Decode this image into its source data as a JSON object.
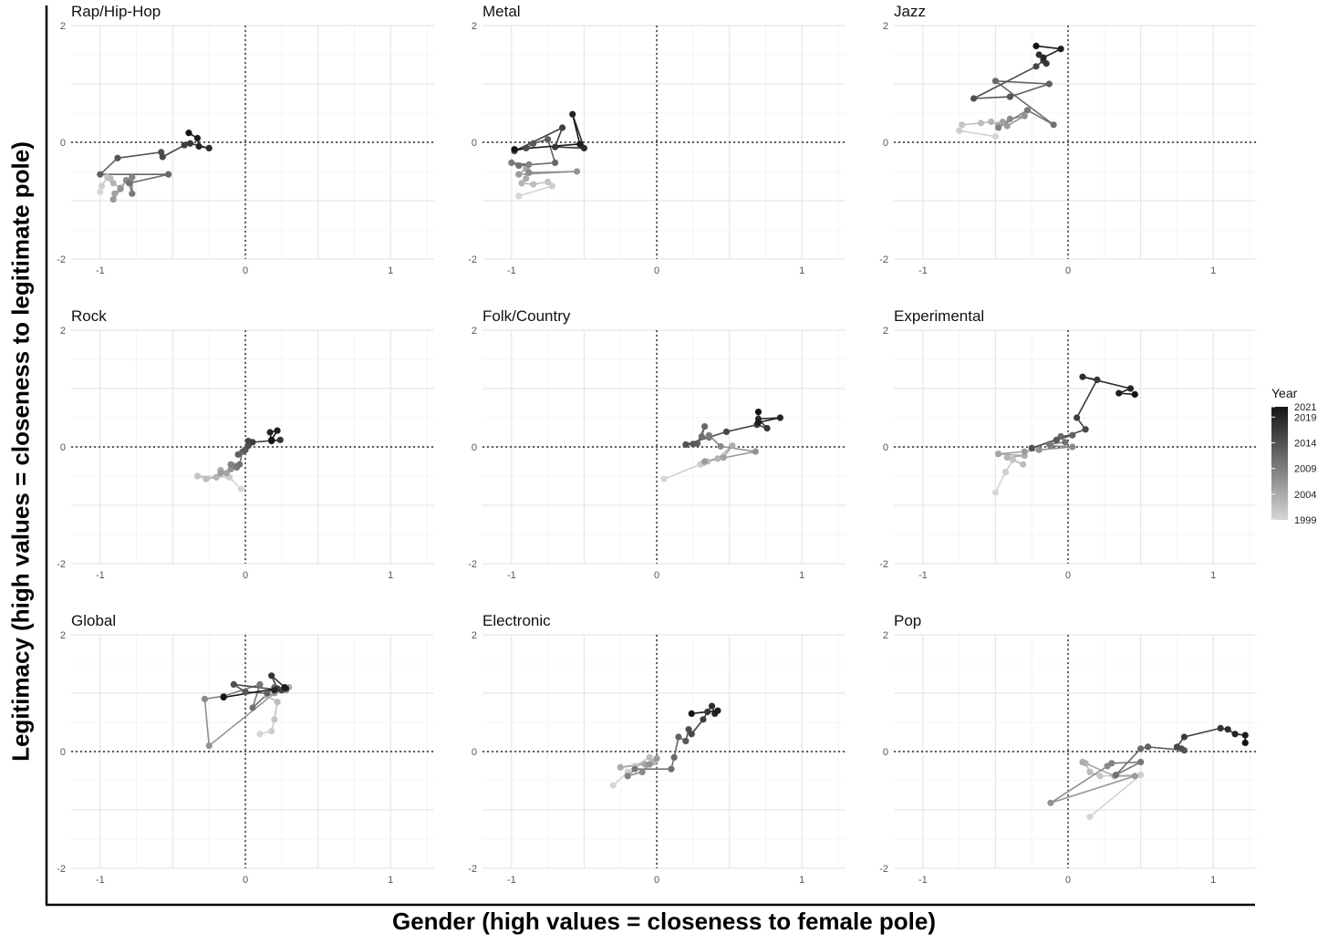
{
  "chart_data": {
    "type": "line",
    "subtype": "faceted connected scatter (path over years)",
    "xlabel": "Gender (high values = closeness to female pole)",
    "ylabel": "Legitimacy (high values = closeness to legitimate pole)",
    "xlim": [
      -1.2,
      1.3
    ],
    "ylim": [
      -2,
      2
    ],
    "x_ticks": [
      -1,
      0,
      1
    ],
    "y_ticks": [
      -2,
      0,
      2
    ],
    "x_tick_labels": [
      "-1",
      "0",
      "1"
    ],
    "y_tick_labels": [
      "-2",
      "0",
      "2"
    ],
    "grid": true,
    "reference_lines": {
      "x": 0,
      "y": 0,
      "style": "dotted"
    },
    "legend": {
      "title": "Year",
      "placement": "right",
      "labels": [
        {
          "year": 2021,
          "text": "2021"
        },
        {
          "year": 2019,
          "text": "2019"
        },
        {
          "year": 2014,
          "text": "2014"
        },
        {
          "year": 2009,
          "text": "2009"
        },
        {
          "year": 2004,
          "text": "2004"
        },
        {
          "year": 1999,
          "text": "1999"
        }
      ],
      "range": [
        1999,
        2021
      ],
      "color_low": "#d6d6d6",
      "color_high": "#141414"
    },
    "facets": [
      {
        "title": "Rap/Hip-Hop",
        "years": [
          1999,
          2021
        ],
        "points": [
          [
            -1.0,
            -0.85
          ],
          [
            -0.99,
            -0.75
          ],
          [
            -0.95,
            -0.6
          ],
          [
            -0.93,
            -0.62
          ],
          [
            -0.91,
            -0.7
          ],
          [
            -0.86,
            -0.78
          ],
          [
            -0.9,
            -0.88
          ],
          [
            -0.91,
            -0.98
          ],
          [
            -0.86,
            -0.8
          ],
          [
            -0.82,
            -0.65
          ],
          [
            -0.78,
            -0.6
          ],
          [
            -0.78,
            -0.88
          ],
          [
            -0.8,
            -0.7
          ],
          [
            -0.53,
            -0.55
          ],
          [
            -1.0,
            -0.55
          ],
          [
            -0.88,
            -0.27
          ],
          [
            -0.58,
            -0.17
          ],
          [
            -0.57,
            -0.25
          ],
          [
            -0.42,
            -0.05
          ],
          [
            -0.38,
            -0.02
          ],
          [
            -0.25,
            -0.1
          ],
          [
            -0.32,
            -0.07
          ],
          [
            -0.33,
            0.07
          ],
          [
            -0.39,
            0.16
          ]
        ]
      },
      {
        "title": "Metal",
        "years": [
          1999,
          2021
        ],
        "points": [
          [
            -0.95,
            -0.92
          ],
          [
            -0.72,
            -0.75
          ],
          [
            -0.75,
            -0.68
          ],
          [
            -0.85,
            -0.72
          ],
          [
            -0.93,
            -0.7
          ],
          [
            -0.9,
            -0.62
          ],
          [
            -0.9,
            -0.45
          ],
          [
            -0.95,
            -0.55
          ],
          [
            -0.55,
            -0.5
          ],
          [
            -0.88,
            -0.52
          ],
          [
            -0.88,
            -0.38
          ],
          [
            -1.0,
            -0.35
          ],
          [
            -0.95,
            -0.4
          ],
          [
            -0.7,
            -0.35
          ],
          [
            -0.75,
            0.05
          ],
          [
            -0.85,
            -0.02
          ],
          [
            -0.9,
            -0.1
          ],
          [
            -0.98,
            -0.15
          ],
          [
            -0.65,
            0.25
          ],
          [
            -0.7,
            -0.08
          ],
          [
            -0.5,
            -0.1
          ],
          [
            -0.58,
            0.48
          ],
          [
            -0.53,
            -0.03
          ],
          [
            -0.98,
            -0.12
          ]
        ]
      },
      {
        "title": "Jazz",
        "years": [
          1999,
          2021
        ],
        "points": [
          [
            -0.5,
            0.1
          ],
          [
            -0.75,
            0.2
          ],
          [
            -0.73,
            0.3
          ],
          [
            -0.6,
            0.33
          ],
          [
            -0.53,
            0.35
          ],
          [
            -0.48,
            0.3
          ],
          [
            -0.45,
            0.35
          ],
          [
            -0.42,
            0.28
          ],
          [
            -0.3,
            0.45
          ],
          [
            -0.4,
            0.4
          ],
          [
            -0.48,
            0.25
          ],
          [
            -0.28,
            0.55
          ],
          [
            -0.1,
            0.3
          ],
          [
            -0.5,
            1.05
          ],
          [
            -0.13,
            1.0
          ],
          [
            -0.4,
            0.78
          ],
          [
            -0.65,
            0.75
          ],
          [
            -0.22,
            1.3
          ],
          [
            -0.17,
            1.4
          ],
          [
            -0.15,
            1.35
          ],
          [
            -0.2,
            1.5
          ],
          [
            -0.17,
            1.45
          ],
          [
            -0.05,
            1.6
          ],
          [
            -0.22,
            1.65
          ]
        ]
      },
      {
        "title": "Rock",
        "years": [
          1999,
          2021
        ],
        "points": [
          [
            -0.03,
            -0.72
          ],
          [
            -0.11,
            -0.52
          ],
          [
            -0.33,
            -0.5
          ],
          [
            -0.27,
            -0.55
          ],
          [
            -0.2,
            -0.52
          ],
          [
            -0.17,
            -0.4
          ],
          [
            -0.13,
            -0.45
          ],
          [
            -0.17,
            -0.45
          ],
          [
            -0.1,
            -0.38
          ],
          [
            -0.07,
            -0.33
          ],
          [
            -0.1,
            -0.3
          ],
          [
            -0.06,
            -0.35
          ],
          [
            -0.04,
            -0.3
          ],
          [
            -0.02,
            -0.08
          ],
          [
            -0.05,
            -0.13
          ],
          [
            0.0,
            -0.05
          ],
          [
            0.02,
            0.02
          ],
          [
            0.02,
            0.1
          ],
          [
            0.05,
            0.08
          ],
          [
            0.24,
            0.12
          ],
          [
            0.18,
            0.1
          ],
          [
            0.17,
            0.25
          ],
          [
            0.22,
            0.28
          ],
          [
            0.18,
            0.12
          ]
        ]
      },
      {
        "title": "Folk/Country",
        "years": [
          1999,
          2021
        ],
        "points": [
          [
            0.05,
            -0.55
          ],
          [
            0.3,
            -0.3
          ],
          [
            0.32,
            -0.28
          ],
          [
            0.35,
            -0.25
          ],
          [
            0.42,
            -0.2
          ],
          [
            0.52,
            0.02
          ],
          [
            0.46,
            -0.18
          ],
          [
            0.33,
            -0.25
          ],
          [
            0.68,
            -0.08
          ],
          [
            0.44,
            0.01
          ],
          [
            0.36,
            0.2
          ],
          [
            0.36,
            0.16
          ],
          [
            0.31,
            0.18
          ],
          [
            0.33,
            0.35
          ],
          [
            0.28,
            0.06
          ],
          [
            0.25,
            0.05
          ],
          [
            0.2,
            0.04
          ],
          [
            0.48,
            0.26
          ],
          [
            0.69,
            0.38
          ],
          [
            0.76,
            0.32
          ],
          [
            0.7,
            0.48
          ],
          [
            0.85,
            0.5
          ],
          [
            0.7,
            0.42
          ],
          [
            0.7,
            0.6
          ]
        ]
      },
      {
        "title": "Experimental",
        "years": [
          1999,
          2021
        ],
        "points": [
          [
            -0.5,
            -0.78
          ],
          [
            -0.43,
            -0.43
          ],
          [
            -0.38,
            -0.22
          ],
          [
            -0.31,
            -0.3
          ],
          [
            -0.42,
            -0.18
          ],
          [
            -0.3,
            -0.15
          ],
          [
            -0.48,
            -0.12
          ],
          [
            -0.3,
            -0.08
          ],
          [
            -0.2,
            -0.05
          ],
          [
            0.03,
            0.0
          ],
          [
            -0.12,
            0.02
          ],
          [
            -0.13,
            0.05
          ],
          [
            -0.02,
            0.08
          ],
          [
            -0.05,
            0.18
          ],
          [
            0.03,
            0.2
          ],
          [
            -0.08,
            0.12
          ],
          [
            -0.25,
            -0.02
          ],
          [
            0.12,
            0.3
          ],
          [
            0.06,
            0.5
          ],
          [
            0.2,
            1.15
          ],
          [
            0.1,
            1.2
          ],
          [
            0.43,
            1.0
          ],
          [
            0.35,
            0.92
          ],
          [
            0.46,
            0.9
          ]
        ]
      },
      {
        "title": "Global",
        "years": [
          1999,
          2021
        ],
        "points": [
          [
            0.1,
            0.3
          ],
          [
            0.18,
            0.35
          ],
          [
            0.2,
            0.55
          ],
          [
            0.22,
            0.85
          ],
          [
            0.15,
            0.95
          ],
          [
            0.3,
            1.1
          ],
          [
            0.28,
            1.05
          ],
          [
            0.2,
            1.0
          ],
          [
            -0.25,
            0.1
          ],
          [
            -0.28,
            0.9
          ],
          [
            -0.15,
            0.95
          ],
          [
            0.1,
            1.15
          ],
          [
            0.05,
            0.75
          ],
          [
            0.2,
            1.1
          ],
          [
            0.15,
            1.0
          ],
          [
            0.0,
            1.02
          ],
          [
            -0.08,
            1.15
          ],
          [
            0.25,
            1.05
          ],
          [
            0.22,
            1.08
          ],
          [
            0.18,
            1.3
          ],
          [
            0.28,
            1.08
          ],
          [
            0.2,
            1.05
          ],
          [
            0.27,
            1.1
          ],
          [
            -0.15,
            0.93
          ]
        ]
      },
      {
        "title": "Electronic",
        "years": [
          1999,
          2021
        ],
        "points": [
          [
            -0.3,
            -0.58
          ],
          [
            -0.2,
            -0.35
          ],
          [
            -0.15,
            -0.25
          ],
          [
            -0.05,
            -0.1
          ],
          [
            -0.02,
            -0.18
          ],
          [
            -0.25,
            -0.27
          ],
          [
            -0.08,
            -0.22
          ],
          [
            0.0,
            -0.12
          ],
          [
            -0.05,
            -0.22
          ],
          [
            -0.1,
            -0.35
          ],
          [
            -0.2,
            -0.42
          ],
          [
            -0.15,
            -0.3
          ],
          [
            0.1,
            -0.3
          ],
          [
            0.12,
            -0.1
          ],
          [
            0.15,
            0.25
          ],
          [
            0.2,
            0.18
          ],
          [
            0.22,
            0.38
          ],
          [
            0.24,
            0.3
          ],
          [
            0.32,
            0.55
          ],
          [
            0.35,
            0.68
          ],
          [
            0.38,
            0.78
          ],
          [
            0.4,
            0.65
          ],
          [
            0.42,
            0.7
          ],
          [
            0.24,
            0.65
          ]
        ]
      },
      {
        "title": "Pop",
        "years": [
          1999,
          2021
        ],
        "points": [
          [
            0.15,
            -1.12
          ],
          [
            0.5,
            -0.4
          ],
          [
            0.22,
            -0.42
          ],
          [
            0.15,
            -0.35
          ],
          [
            0.12,
            -0.2
          ],
          [
            0.1,
            -0.18
          ],
          [
            0.32,
            -0.42
          ],
          [
            0.46,
            -0.42
          ],
          [
            -0.12,
            -0.88
          ],
          [
            0.27,
            -0.25
          ],
          [
            0.3,
            -0.2
          ],
          [
            0.5,
            -0.18
          ],
          [
            0.33,
            -0.4
          ],
          [
            0.5,
            0.05
          ],
          [
            0.55,
            0.08
          ],
          [
            0.8,
            0.02
          ],
          [
            0.78,
            0.05
          ],
          [
            0.75,
            0.08
          ],
          [
            0.8,
            0.25
          ],
          [
            1.05,
            0.4
          ],
          [
            1.1,
            0.38
          ],
          [
            1.15,
            0.3
          ],
          [
            1.22,
            0.28
          ],
          [
            1.22,
            0.15
          ]
        ]
      }
    ]
  }
}
